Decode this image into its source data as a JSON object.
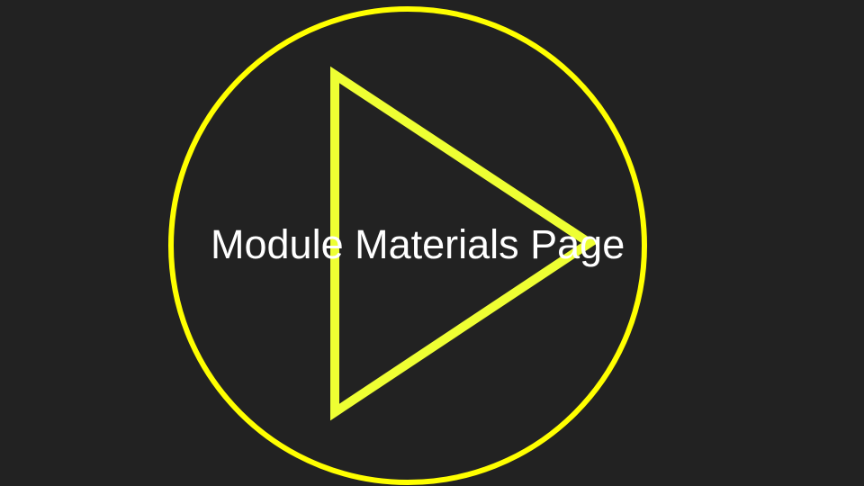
{
  "video": {
    "title": "Module Materials Page",
    "play_icon": "play-icon",
    "colors": {
      "background": "#222222",
      "ring": "#ffff00",
      "triangle": "#eeff33",
      "title_text": "#ffffff"
    }
  }
}
